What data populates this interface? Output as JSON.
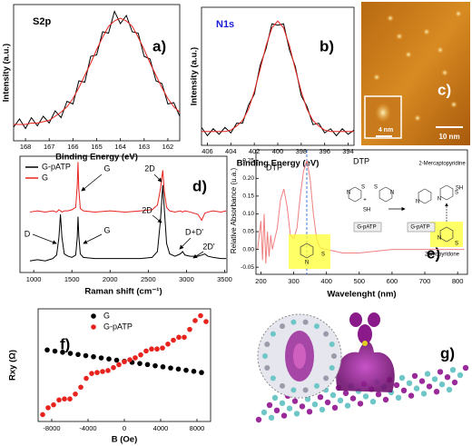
{
  "chart_data": [
    {
      "type": "line",
      "title": "S2p",
      "panel_label": "a)",
      "xlabel": "Binding Energy (eV)",
      "ylabel": "Intensity (a.u.)",
      "xlim": [
        168.5,
        161.5
      ],
      "ylim": [
        0,
        1
      ],
      "xticks": [
        168,
        167,
        166,
        165,
        164,
        163,
        162
      ],
      "x": [
        168.5,
        168.25,
        168,
        167.75,
        167.5,
        167.25,
        167,
        166.75,
        166.5,
        166.25,
        166,
        165.75,
        165.5,
        165.25,
        165,
        164.75,
        164.5,
        164.25,
        164,
        163.75,
        163.5,
        163.25,
        163,
        162.75,
        162.5,
        162.25,
        162,
        161.75,
        161.5
      ],
      "series": [
        {
          "color": "#000000",
          "values": [
            0.1,
            0.16,
            0.09,
            0.17,
            0.11,
            0.18,
            0.13,
            0.22,
            0.17,
            0.29,
            0.27,
            0.44,
            0.43,
            0.62,
            0.63,
            0.8,
            0.79,
            0.95,
            0.86,
            0.92,
            0.8,
            0.79,
            0.62,
            0.6,
            0.44,
            0.42,
            0.27,
            0.28,
            0.18
          ]
        },
        {
          "color": "#e8231d",
          "values": [
            0.12,
            0.12,
            0.12,
            0.13,
            0.13,
            0.14,
            0.15,
            0.18,
            0.21,
            0.25,
            0.31,
            0.39,
            0.48,
            0.57,
            0.67,
            0.76,
            0.84,
            0.88,
            0.9,
            0.88,
            0.84,
            0.76,
            0.67,
            0.57,
            0.48,
            0.39,
            0.31,
            0.25,
            0.21
          ]
        }
      ]
    },
    {
      "type": "line",
      "title": "N1s",
      "title_color": "#1a1adc",
      "panel_label": "b)",
      "xlabel": "Binding Energy (eV)",
      "ylabel": "Intensity (a.u.)",
      "xlim": [
        406.5,
        393.5
      ],
      "ylim": [
        0,
        1
      ],
      "xticks": [
        406,
        404,
        402,
        400,
        398,
        396,
        394
      ],
      "x": [
        406.5,
        406,
        405.5,
        405,
        404.5,
        404,
        403.5,
        403,
        402.5,
        402,
        401.5,
        401,
        400.5,
        400,
        399.5,
        399,
        398.5,
        398,
        397.5,
        397,
        396.5,
        396,
        395.5,
        395,
        394.5,
        394,
        393.5
      ],
      "series": [
        {
          "color": "#000000",
          "values": [
            0.13,
            0.07,
            0.12,
            0.08,
            0.13,
            0.09,
            0.16,
            0.16,
            0.29,
            0.37,
            0.58,
            0.7,
            0.88,
            0.87,
            0.88,
            0.69,
            0.57,
            0.36,
            0.28,
            0.15,
            0.16,
            0.09,
            0.12,
            0.07,
            0.12,
            0.08,
            0.11
          ]
        },
        {
          "color": "#e8231d",
          "values": [
            0.1,
            0.1,
            0.1,
            0.1,
            0.1,
            0.11,
            0.14,
            0.18,
            0.26,
            0.39,
            0.55,
            0.72,
            0.85,
            0.9,
            0.85,
            0.72,
            0.55,
            0.39,
            0.26,
            0.18,
            0.14,
            0.11,
            0.1,
            0.1,
            0.1,
            0.1,
            0.1
          ]
        }
      ]
    },
    {
      "type": "line",
      "panel_label": "d)",
      "xlabel": "Raman shift (cm⁻¹)",
      "xlim": [
        820,
        3530
      ],
      "ylim": [
        0,
        1
      ],
      "xticks": [
        1000,
        1500,
        2000,
        2500,
        3000,
        3500
      ],
      "x": [
        950,
        1050,
        1150,
        1250,
        1300,
        1330,
        1350,
        1370,
        1400,
        1450,
        1500,
        1550,
        1570,
        1580,
        1590,
        1610,
        1650,
        1800,
        2000,
        2200,
        2400,
        2550,
        2620,
        2660,
        2690,
        2710,
        2740,
        2780,
        2850,
        2920,
        2950,
        2980,
        3050,
        3150,
        3200,
        3240,
        3280,
        3350,
        3450,
        3520
      ],
      "legend": "upper left",
      "series": [
        {
          "name": "G-pATP",
          "color": "#000000",
          "values": [
            0.1,
            0.11,
            0.1,
            0.12,
            0.15,
            0.3,
            0.5,
            0.3,
            0.16,
            0.14,
            0.13,
            0.15,
            0.3,
            0.48,
            0.32,
            0.16,
            0.13,
            0.12,
            0.12,
            0.12,
            0.12,
            0.13,
            0.18,
            0.45,
            0.75,
            0.55,
            0.25,
            0.16,
            0.14,
            0.16,
            0.18,
            0.15,
            0.14,
            0.14,
            0.15,
            0.16,
            0.14,
            0.13,
            0.12,
            0.12
          ]
        },
        {
          "name": "G",
          "color": "#e8231d",
          "values": [
            0.52,
            0.53,
            0.52,
            0.53,
            0.52,
            0.54,
            0.53,
            0.52,
            0.53,
            0.53,
            0.54,
            0.56,
            0.75,
            0.95,
            0.72,
            0.55,
            0.53,
            0.52,
            0.53,
            0.52,
            0.53,
            0.54,
            0.58,
            0.72,
            0.88,
            0.7,
            0.56,
            0.53,
            0.52,
            0.53,
            0.52,
            0.53,
            0.52,
            0.5,
            0.45,
            0.51,
            0.52,
            0.53,
            0.52,
            0.53
          ]
        }
      ],
      "annotations": [
        "G",
        "2D",
        "D",
        "G",
        "2D",
        "D+D'",
        "2D'"
      ]
    },
    {
      "type": "line",
      "panel_label": "e)",
      "xlabel": "Wavelenght (nm)",
      "ylabel": "Relative Absorbance (u.a.)",
      "xlim": [
        185,
        830
      ],
      "ylim": [
        -0.07,
        0.28
      ],
      "xticks": [
        200,
        300,
        400,
        500,
        600,
        700,
        800
      ],
      "yticks": [
        -0.05,
        {
          "value": 0,
          "label": "0.00"
        },
        0.05,
        {
          "value": 0.1,
          "label": "0.10"
        },
        0.15,
        {
          "value": 0.2,
          "label": "0.20"
        },
        0.25
      ],
      "marker_x": 340,
      "marker_color": "#2a6fdb",
      "x": [
        190,
        200,
        205,
        210,
        215,
        220,
        225,
        230,
        235,
        240,
        250,
        260,
        270,
        280,
        290,
        300,
        310,
        320,
        330,
        340,
        350,
        360,
        370,
        380,
        400,
        450,
        500,
        600,
        700,
        800,
        820
      ],
      "series": [
        {
          "color": "#f08080",
          "values": [
            0.0,
            0.08,
            -0.03,
            0.1,
            -0.04,
            0.05,
            -0.02,
            0.04,
            0.0,
            0.02,
            0.06,
            0.14,
            0.17,
            0.12,
            0.04,
            0.03,
            0.06,
            0.15,
            0.22,
            0.25,
            0.2,
            0.1,
            0.03,
            0.005,
            0.0,
            -0.01,
            -0.01,
            0.0,
            0.0,
            0.0,
            0.0
          ]
        }
      ],
      "annotations": [
        "DTP",
        "DTP",
        "+",
        "SH",
        "G-pATP",
        "G-pATP",
        "2-Mercaptopyridine",
        "SH",
        "2-thiopyridone",
        "S",
        "S",
        "N",
        "N",
        "N",
        "S",
        "N",
        "S",
        "N",
        "S",
        "N"
      ]
    },
    {
      "type": "scatter",
      "panel_label": "f)",
      "xlabel": "B (Oe)",
      "ylabel": "Rxy (Ω)",
      "xlim": [
        -9500,
        9500
      ],
      "ylim": [
        -6,
        5.5
      ],
      "xticks": [
        -8000,
        -4000,
        0,
        4000,
        8000
      ],
      "legend": "upper center",
      "series": [
        {
          "name": "G",
          "color": "#000000",
          "x": [
            -8500,
            -7650,
            -6800,
            -5950,
            -5100,
            -4250,
            -3400,
            -2550,
            -1700,
            -850,
            0,
            850,
            1700,
            2550,
            3400,
            4250,
            5100,
            5950,
            6800,
            7650,
            8500
          ],
          "values": [
            1.3,
            1.18,
            1.07,
            0.95,
            0.84,
            0.72,
            0.61,
            0.49,
            0.38,
            0.26,
            0.15,
            0.04,
            -0.08,
            -0.19,
            -0.31,
            -0.42,
            -0.54,
            -0.65,
            -0.77,
            -0.88,
            -1.0
          ]
        },
        {
          "name": "G-pATP",
          "color": "#e8231d",
          "x": [
            -9000,
            -8400,
            -7800,
            -7200,
            -6600,
            -6000,
            -5400,
            -4800,
            -4200,
            -3600,
            -3000,
            -2400,
            -1800,
            -1200,
            -600,
            0,
            600,
            1200,
            1800,
            2400,
            3000,
            3600,
            4200,
            4800,
            5400,
            6000,
            6600,
            7200,
            7800,
            8400,
            9000
          ],
          "values": [
            -5.3,
            -4.6,
            -4.3,
            -3.8,
            -3.7,
            -3.7,
            -3.2,
            -2.5,
            -1.6,
            -1.1,
            -1.0,
            -0.9,
            -0.8,
            -0.5,
            -0.2,
            0.1,
            0.3,
            0.5,
            0.8,
            1.2,
            1.4,
            1.4,
            1.5,
            1.9,
            2.3,
            2.6,
            2.6,
            3.4,
            4.3,
            4.8,
            4.2
          ]
        }
      ]
    }
  ],
  "images": {
    "afm": {
      "panel_label": "c)",
      "inset_scale": "4 nm",
      "scale": "10 nm"
    },
    "model": {
      "panel_label": "g)"
    }
  }
}
